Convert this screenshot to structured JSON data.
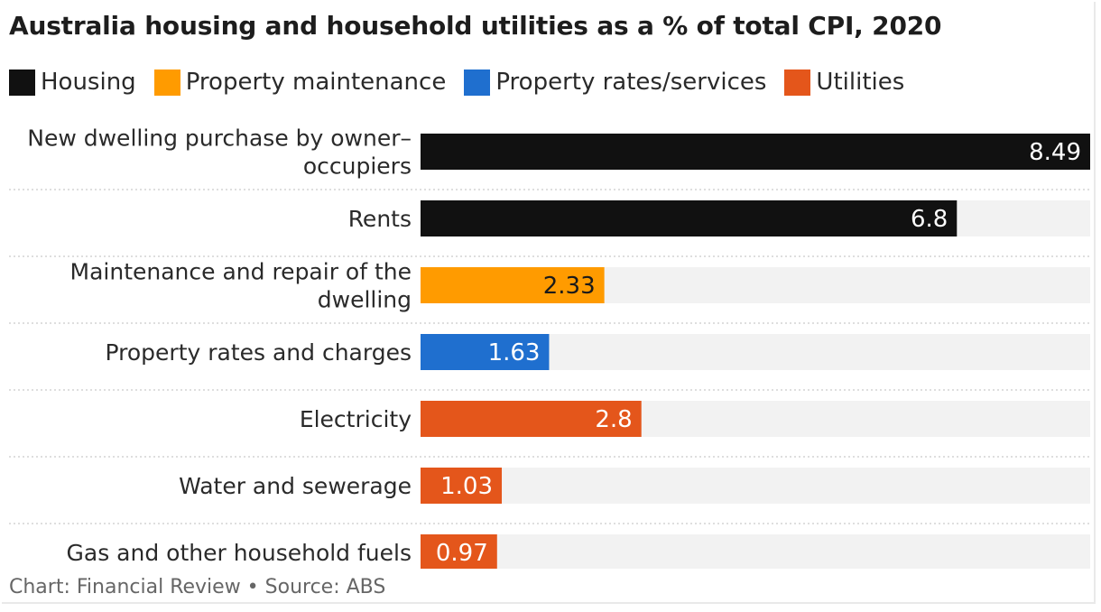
{
  "title": "Australia housing and household utilities as a % of total CPI, 2020",
  "footer": "Chart: Financial Review • Source: ABS",
  "legend": [
    {
      "label": "Housing",
      "color": "#111111"
    },
    {
      "label": "Property maintenance",
      "color": "#ff9b00"
    },
    {
      "label": "Property rates/services",
      "color": "#1f6fcf"
    },
    {
      "label": "Utilities",
      "color": "#e4561b"
    }
  ],
  "chart_data": {
    "type": "bar",
    "orientation": "horizontal",
    "title": "Australia housing and household utilities as a % of total CPI, 2020",
    "xlim": [
      0,
      8.49
    ],
    "grid": false,
    "legend_position": "top-left",
    "categories": [
      {
        "label": [
          "New dwelling purchase by owner–",
          "occupiers"
        ],
        "value": 8.49,
        "value_label": "8.49",
        "group": "Housing",
        "color": "#111111"
      },
      {
        "label": [
          "Rents"
        ],
        "value": 6.8,
        "value_label": "6.8",
        "group": "Housing",
        "color": "#111111"
      },
      {
        "label": [
          "Maintenance and repair of the",
          "dwelling"
        ],
        "value": 2.33,
        "value_label": "2.33",
        "group": "Property maintenance",
        "color": "#ff9b00"
      },
      {
        "label": [
          "Property rates and charges"
        ],
        "value": 1.63,
        "value_label": "1.63",
        "group": "Property rates/services",
        "color": "#1f6fcf"
      },
      {
        "label": [
          "Electricity"
        ],
        "value": 2.8,
        "value_label": "2.8",
        "group": "Utilities",
        "color": "#e4561b"
      },
      {
        "label": [
          "Water and sewerage"
        ],
        "value": 1.03,
        "value_label": "1.03",
        "group": "Utilities",
        "color": "#e4561b"
      },
      {
        "label": [
          "Gas and other household fuels"
        ],
        "value": 0.97,
        "value_label": "0.97",
        "group": "Utilities",
        "color": "#e4561b"
      }
    ]
  }
}
